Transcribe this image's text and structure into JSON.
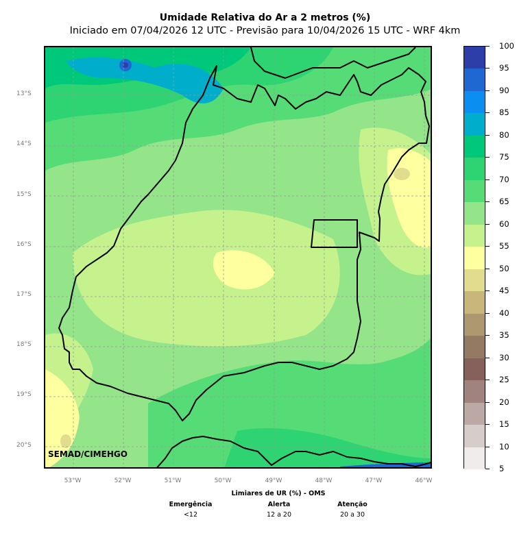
{
  "title": "Umidade Relativa do Ar a 2 metros (%)",
  "subtitle": "Iniciado em 07/04/2026 12 UTC - Previsão para 10/04/2026 15 UTC - WRF 4km",
  "credit": "SEMAD/CIMEHGO",
  "map": {
    "lat_labels": [
      "13°S",
      "14°S",
      "15°S",
      "16°S",
      "17°S",
      "18°S",
      "19°S",
      "20°S"
    ],
    "lon_labels": [
      "53°W",
      "52°W",
      "51°W",
      "50°W",
      "49°W",
      "48°W",
      "47°W",
      "46°W"
    ]
  },
  "colorbar": {
    "labels": [
      "100",
      "95",
      "90",
      "85",
      "80",
      "75",
      "70",
      "65",
      "60",
      "55",
      "50",
      "45",
      "40",
      "35",
      "30",
      "25",
      "20",
      "15",
      "10",
      "5"
    ],
    "colors": [
      "#2e3ea8",
      "#1f68d2",
      "#0a8ef0",
      "#00aecc",
      "#00c87a",
      "#2ed471",
      "#56dc77",
      "#94e48a",
      "#c6f28e",
      "#feff9e",
      "#e2dc8e",
      "#c8b67a",
      "#ae9870",
      "#947a62",
      "#86605a",
      "#a0827e",
      "#bca8a4",
      "#d6ccca",
      "#f1ecec"
    ]
  },
  "thresholds": {
    "title": "Limiares de UR (%) - OMS",
    "items": [
      {
        "label": "Emergência",
        "range": "<12"
      },
      {
        "label": "Alerta",
        "range": "12 a 20"
      },
      {
        "label": "Atenção",
        "range": "20 a 30"
      }
    ]
  }
}
